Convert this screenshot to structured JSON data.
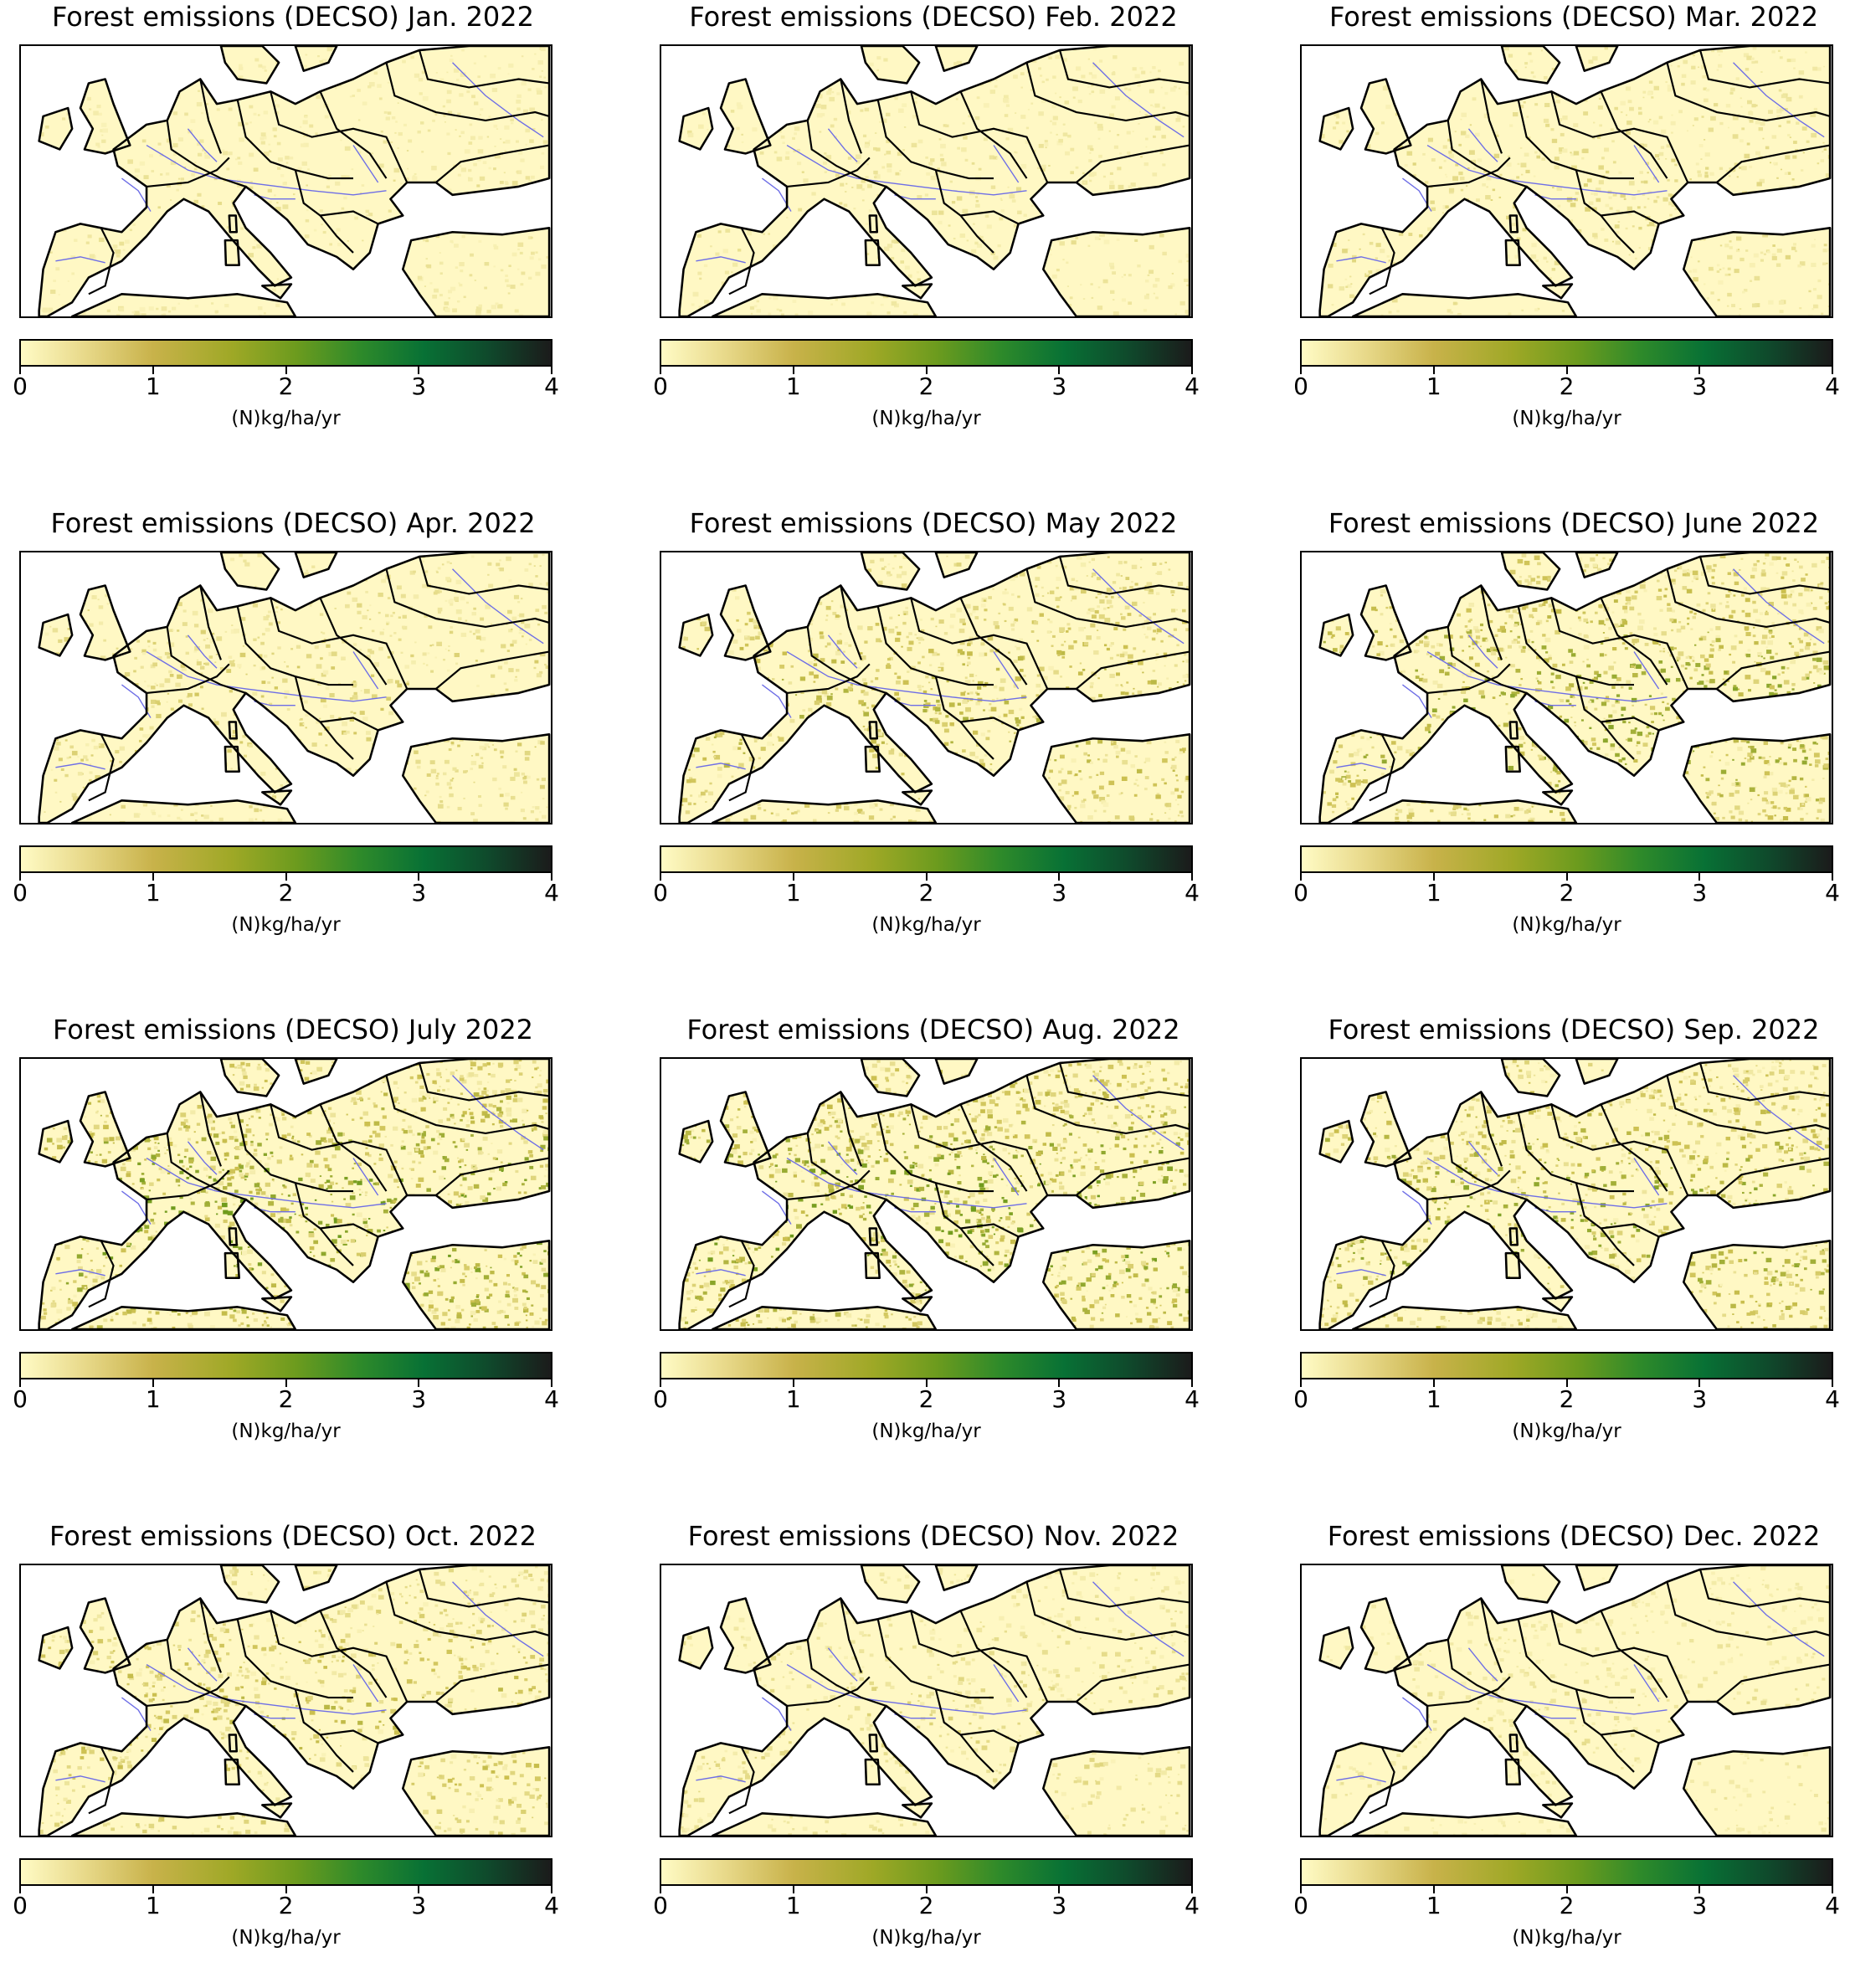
{
  "figure": {
    "panels": [
      {
        "title": "Forest emissions (DECSO) Jan. 2022",
        "intensity": 0.12
      },
      {
        "title": "Forest emissions (DECSO) Feb. 2022",
        "intensity": 0.12
      },
      {
        "title": "Forest emissions (DECSO) Mar. 2022",
        "intensity": 0.18
      },
      {
        "title": "Forest emissions (DECSO) Apr. 2022",
        "intensity": 0.25
      },
      {
        "title": "Forest emissions (DECSO) May  2022",
        "intensity": 0.4
      },
      {
        "title": "Forest emissions (DECSO) June 2022",
        "intensity": 0.55
      },
      {
        "title": "Forest emissions (DECSO) July 2022",
        "intensity": 0.65
      },
      {
        "title": "Forest emissions (DECSO) Aug. 2022",
        "intensity": 0.65
      },
      {
        "title": "Forest emissions (DECSO) Sep. 2022",
        "intensity": 0.55
      },
      {
        "title": "Forest emissions (DECSO) Oct. 2022",
        "intensity": 0.35
      },
      {
        "title": "Forest emissions (DECSO) Nov. 2022",
        "intensity": 0.18
      },
      {
        "title": "Forest emissions (DECSO) Dec. 2022",
        "intensity": 0.12
      }
    ],
    "colorbar": {
      "label": "(N)kg/ha/yr",
      "min": 0,
      "max": 4,
      "ticks": [
        "0",
        "1",
        "2",
        "3",
        "4"
      ],
      "colormap": [
        "#fffbc5",
        "#c8b24a",
        "#6c9b1e",
        "#087135",
        "#1b1b1b"
      ]
    },
    "colors": {
      "ocean": "#ffffff",
      "land_low": "#fff8c4",
      "land_mid": "#cbbf4e",
      "land_high": "#6f9b1c",
      "borders": "#000000",
      "rivers": "#6e6ee6"
    }
  }
}
